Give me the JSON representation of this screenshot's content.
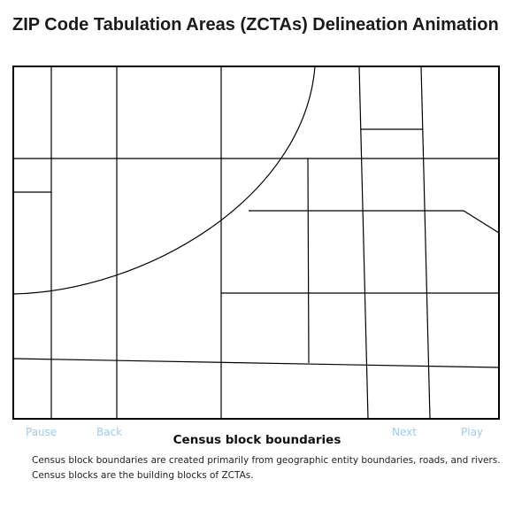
{
  "title": "ZIP Code Tabulation Areas (ZCTAs) Delineation Animation",
  "controls": {
    "pause_label": "Pause",
    "back_label": "Back",
    "next_label": "Next",
    "play_label": "Play",
    "color": "#9ecbef"
  },
  "caption": {
    "heading": "Census block boundaries",
    "line1": "Census block boundaries are created primarily from geographic entity boundaries, roads, and rivers.",
    "line2": "Census blocks are the building blocks of ZCTAs."
  },
  "diagram": {
    "line_color": "#000000",
    "background": "#ffffff"
  }
}
